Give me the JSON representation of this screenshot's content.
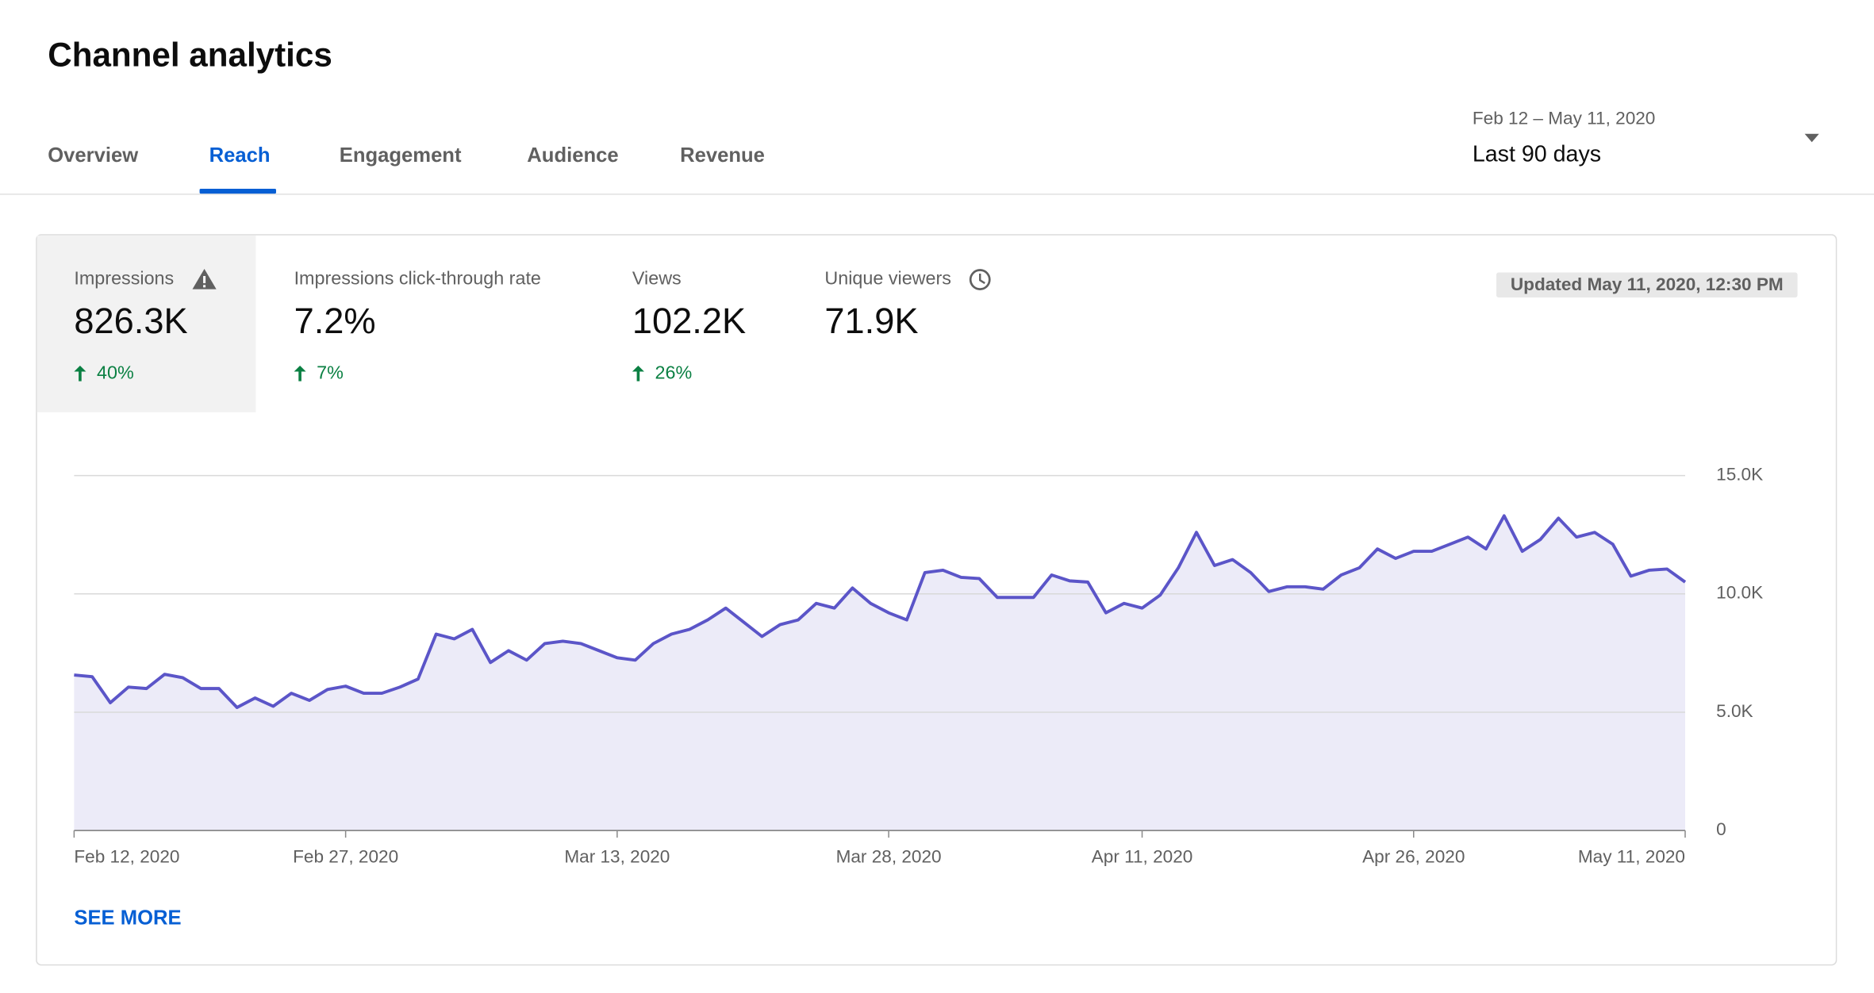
{
  "header": {
    "title": "Channel analytics",
    "tabs": [
      "Overview",
      "Reach",
      "Engagement",
      "Audience",
      "Revenue"
    ],
    "active_tab": 1,
    "date_range": {
      "dates": "Feb 12 – May 11, 2020",
      "label": "Last 90 days"
    }
  },
  "metrics": [
    {
      "label": "Impressions",
      "value": "826.3K",
      "change": "40%"
    },
    {
      "label": "Impressions click-through rate",
      "value": "7.2%",
      "change": "7%"
    },
    {
      "label": "Views",
      "value": "102.2K",
      "change": "26%"
    },
    {
      "label": "Unique viewers",
      "value": "71.9K"
    }
  ],
  "updated": "Updated May 11, 2020, 12:30 PM",
  "see_more": "SEE MORE",
  "chart_data": {
    "type": "area",
    "color": "#5b55c8",
    "fill": "#ecebf8",
    "grid": true,
    "x": [
      "2020-02-12",
      "2020-02-13",
      "2020-02-14",
      "2020-02-15",
      "2020-02-16",
      "2020-02-17",
      "2020-02-18",
      "2020-02-19",
      "2020-02-20",
      "2020-02-21",
      "2020-02-22",
      "2020-02-23",
      "2020-02-24",
      "2020-02-25",
      "2020-02-26",
      "2020-02-27",
      "2020-02-28",
      "2020-02-29",
      "2020-03-01",
      "2020-03-02",
      "2020-03-03",
      "2020-03-04",
      "2020-03-05",
      "2020-03-06",
      "2020-03-07",
      "2020-03-08",
      "2020-03-09",
      "2020-03-10",
      "2020-03-11",
      "2020-03-12",
      "2020-03-13",
      "2020-03-14",
      "2020-03-15",
      "2020-03-16",
      "2020-03-17",
      "2020-03-18",
      "2020-03-19",
      "2020-03-20",
      "2020-03-21",
      "2020-03-22",
      "2020-03-23",
      "2020-03-24",
      "2020-03-25",
      "2020-03-26",
      "2020-03-27",
      "2020-03-28",
      "2020-03-29",
      "2020-03-30",
      "2020-03-31",
      "2020-04-01",
      "2020-04-02",
      "2020-04-03",
      "2020-04-04",
      "2020-04-05",
      "2020-04-06",
      "2020-04-07",
      "2020-04-08",
      "2020-04-09",
      "2020-04-10",
      "2020-04-11",
      "2020-04-12",
      "2020-04-13",
      "2020-04-14",
      "2020-04-15",
      "2020-04-16",
      "2020-04-17",
      "2020-04-18",
      "2020-04-19",
      "2020-04-20",
      "2020-04-21",
      "2020-04-22",
      "2020-04-23",
      "2020-04-24",
      "2020-04-25",
      "2020-04-26",
      "2020-04-27",
      "2020-04-28",
      "2020-04-29",
      "2020-04-30",
      "2020-05-01",
      "2020-05-02",
      "2020-05-03",
      "2020-05-04",
      "2020-05-05",
      "2020-05-06",
      "2020-05-07",
      "2020-05-08",
      "2020-05-09",
      "2020-05-10",
      "2020-05-11"
    ],
    "values": [
      6570,
      6500,
      5400,
      6060,
      6000,
      6600,
      6460,
      6000,
      6000,
      5200,
      5600,
      5250,
      5800,
      5500,
      5960,
      6100,
      5800,
      5800,
      6060,
      6400,
      8300,
      8100,
      8500,
      7100,
      7600,
      7200,
      7900,
      8000,
      7900,
      7600,
      7300,
      7200,
      7900,
      8300,
      8500,
      8900,
      9400,
      8800,
      8200,
      8700,
      8900,
      9600,
      9400,
      10250,
      9600,
      9200,
      8900,
      10900,
      11000,
      10700,
      10650,
      9850,
      9850,
      9850,
      10800,
      10550,
      10500,
      9200,
      9600,
      9400,
      9950,
      11100,
      12600,
      11200,
      11450,
      10900,
      10100,
      10300,
      10300,
      10200,
      10800,
      11100,
      11900,
      11500,
      11800,
      11800,
      12100,
      12400,
      11900,
      13300,
      11800,
      12300,
      13200,
      12400,
      12600,
      12100,
      10750,
      11000,
      11050,
      10500
    ],
    "xlim": [
      "2020-02-12",
      "2020-05-11"
    ],
    "xticks": [
      {
        "value": "2020-02-12",
        "label": "Feb 12, 2020"
      },
      {
        "value": "2020-02-27",
        "label": "Feb 27, 2020"
      },
      {
        "value": "2020-03-13",
        "label": "Mar 13, 2020"
      },
      {
        "value": "2020-03-28",
        "label": "Mar 28, 2020"
      },
      {
        "value": "2020-04-11",
        "label": "Apr 11, 2020"
      },
      {
        "value": "2020-04-26",
        "label": "Apr 26, 2020"
      },
      {
        "value": "2020-05-11",
        "label": "May 11, 2020"
      }
    ],
    "ylim": [
      0,
      15000
    ],
    "yticks": [
      0,
      {
        "value": 5000,
        "label": "5.0K"
      },
      {
        "value": 10000,
        "label": "10.0K"
      },
      {
        "value": 15000,
        "label": "15.0K"
      }
    ]
  }
}
